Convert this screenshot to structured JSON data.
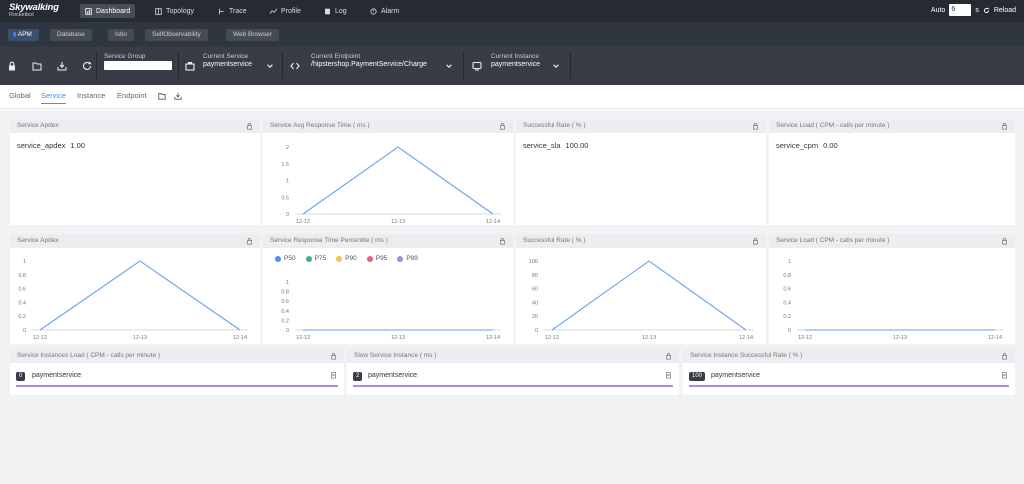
{
  "app": {
    "logo_main": "Skywalking",
    "logo_sub": "Rocketbot"
  },
  "nav": [
    {
      "label": "Dashboard",
      "icon": "dashboard-icon",
      "active": true
    },
    {
      "label": "Topology",
      "icon": "topology-icon"
    },
    {
      "label": "Trace",
      "icon": "trace-icon"
    },
    {
      "label": "Profile",
      "icon": "profile-icon"
    },
    {
      "label": "Log",
      "icon": "log-icon"
    },
    {
      "label": "Alarm",
      "icon": "alarm-icon"
    }
  ],
  "auto": {
    "label": "Auto",
    "interval": "6",
    "unit": "s",
    "reload": "Reload"
  },
  "subtabs": [
    "APM",
    "Database",
    "Istio",
    "SelfObservability",
    "Web Browser"
  ],
  "toolbar": {
    "service_group": {
      "label": "Service Group",
      "value": ""
    },
    "current_service": {
      "label": "Current Service",
      "value": "paymentservice"
    },
    "current_endpoint": {
      "label": "Current Endpoint",
      "value": "/hipstershop.PaymentService/Charge"
    },
    "current_instance": {
      "label": "Current Instance",
      "value": "paymentservice"
    }
  },
  "dashboard_tabs": [
    "Global",
    "Service",
    "Instance",
    "Endpoint"
  ],
  "cards": {
    "apdex": {
      "title": "Service Apdex",
      "metric": "service_apdex",
      "value": "1.00"
    },
    "avg_rt": {
      "title": "Service Avg Response Time ( ms )"
    },
    "sla": {
      "title": "Successful Rate ( % )",
      "metric": "service_sla",
      "value": "100.00"
    },
    "cpm": {
      "title": "Service Load ( CPM - calls per minute )",
      "metric": "service_cpm",
      "value": "0.00"
    },
    "apdex2": {
      "title": "Service Apdex"
    },
    "percentile": {
      "title": "Service Response Time Percentile ( ms )"
    },
    "sla2": {
      "title": "Successful Rate ( % )"
    },
    "cpm2": {
      "title": "Service Load ( CPM - calls per minute )"
    },
    "inst_load": {
      "title": "Service Instances Load ( CPM - calls per minute )",
      "badge": "0",
      "name": "paymentservice"
    },
    "slow_inst": {
      "title": "Slow Service Instance ( ms )",
      "badge": "2",
      "name": "paymentservice"
    },
    "inst_sla": {
      "title": "Service Instance Successful Rate ( % )",
      "badge": "100",
      "name": "paymentservice"
    }
  },
  "legend": [
    {
      "label": "P50",
      "color": "#4a8ef0"
    },
    {
      "label": "P75",
      "color": "#3cb18e"
    },
    {
      "label": "P90",
      "color": "#f3c344"
    },
    {
      "label": "P95",
      "color": "#e8627a"
    },
    {
      "label": "P99",
      "color": "#9b8fe0"
    }
  ],
  "chart_data": [
    {
      "id": "avg_rt",
      "type": "line",
      "categories": [
        "12-12",
        "12-13",
        "12-14"
      ],
      "values": [
        0,
        2,
        0
      ],
      "yticks": [
        0,
        0.5,
        1,
        1.5,
        2
      ],
      "ylim": [
        0,
        2
      ]
    },
    {
      "id": "apdex2",
      "type": "line",
      "categories": [
        "12-12",
        "12-13",
        "12-14"
      ],
      "values": [
        0,
        1,
        0
      ],
      "yticks": [
        0,
        0.2,
        0.4,
        0.6,
        0.8,
        1
      ],
      "ylim": [
        0,
        1
      ]
    },
    {
      "id": "percentile",
      "type": "line",
      "categories": [
        "12-12",
        "12-13",
        "12-14"
      ],
      "series": [
        {
          "name": "P50",
          "values": [
            0,
            0,
            0
          ]
        },
        {
          "name": "P75",
          "values": [
            0,
            0,
            0
          ]
        },
        {
          "name": "P90",
          "values": [
            0,
            0,
            0
          ]
        },
        {
          "name": "P95",
          "values": [
            0,
            0,
            0
          ]
        },
        {
          "name": "P99",
          "values": [
            0,
            0,
            0
          ]
        }
      ],
      "yticks": [
        0,
        0.2,
        0.4,
        0.6,
        0.8,
        1
      ],
      "ylim": [
        0,
        1
      ]
    },
    {
      "id": "sla2",
      "type": "line",
      "categories": [
        "12-12",
        "12-13",
        "12-14"
      ],
      "values": [
        0,
        100,
        0
      ],
      "yticks": [
        0,
        20,
        40,
        60,
        80,
        100
      ],
      "ylim": [
        0,
        100
      ]
    },
    {
      "id": "cpm2",
      "type": "line",
      "categories": [
        "12-12",
        "12-13",
        "12-14"
      ],
      "values": [
        0,
        0,
        0
      ],
      "yticks": [
        0,
        0.2,
        0.4,
        0.6,
        0.8,
        1
      ],
      "ylim": [
        0,
        1
      ]
    }
  ]
}
